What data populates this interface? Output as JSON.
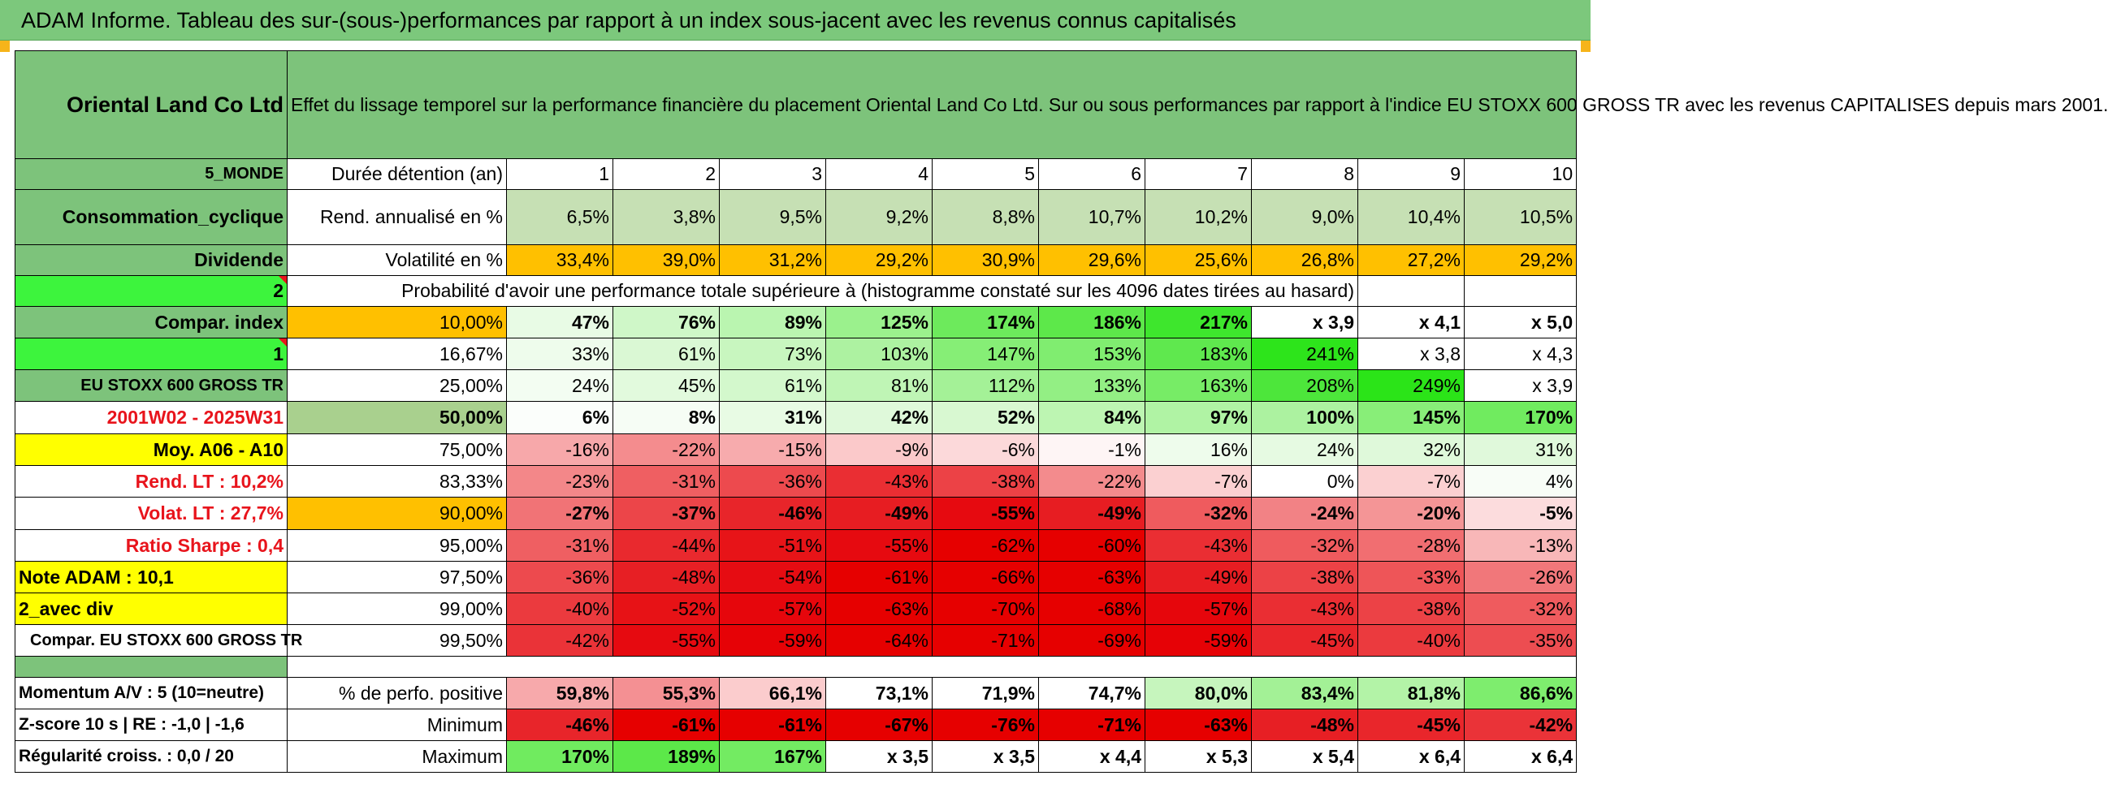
{
  "title": "ADAM Informe. Tableau des sur-(sous-)performances par rapport à un index sous-jacent avec les revenus connus capitalisés",
  "header": {
    "company": "Oriental Land Co Ltd",
    "description": "Effet du lissage temporel sur la performance financière du placement Oriental Land Co Ltd. Sur ou sous performances par rapport à l'indice EU STOXX 600 GROSS TR avec les revenus CAPITALISES depuis mars 2001."
  },
  "labels": {
    "zone": "5_MONDE",
    "sector": "Consommation_cyclique",
    "dividend": "Dividende",
    "code2": "2",
    "compar_index": "Compar. index",
    "code1": "1",
    "index_name": "EU STOXX 600 GROSS TR",
    "period": "2001W02 - 2025W31",
    "moy": "Moy. A06 - A10",
    "rend_lt": "Rend. LT :    10,2%",
    "volat_lt": "Volat. LT :    27,7%",
    "sharpe": "Ratio Sharpe :     0,4",
    "note": "Note ADAM : 10,1",
    "avec_div": "2_avec div",
    "compar_full": "Compar. EU STOXX 600 GROSS TR",
    "momentum": "Momentum A/V : 5 (10=neutre)",
    "zscore": "Z-score 10 s | RE : -1,0 | -1,6",
    "regularite": "Régularité croiss. : 0,0 / 20"
  },
  "duration": {
    "label": "Durée détention (an)",
    "years": [
      "1",
      "2",
      "3",
      "4",
      "5",
      "6",
      "7",
      "8",
      "9",
      "10"
    ]
  },
  "rend": {
    "label": "Rend. annualisé en %",
    "values": [
      "6,5%",
      "3,8%",
      "9,5%",
      "9,2%",
      "8,8%",
      "10,7%",
      "10,2%",
      "9,0%",
      "10,4%",
      "10,5%"
    ]
  },
  "volat": {
    "label": "Volatilité en %",
    "values": [
      "33,4%",
      "39,0%",
      "31,2%",
      "29,2%",
      "30,9%",
      "29,6%",
      "25,6%",
      "26,8%",
      "27,2%",
      "29,2%"
    ]
  },
  "probability_text": "Probabilité d'avoir une performance totale supérieure à (histogramme constaté sur les 4096 dates tirées au hasard)",
  "quantiles": [
    {
      "pct": "10,00%",
      "values": [
        "47%",
        "76%",
        "89%",
        "125%",
        "174%",
        "186%",
        "217%",
        "x 3,9",
        "x 4,1",
        "x 5,0"
      ],
      "colors": [
        "#e8fbe5",
        "#cff7c8",
        "#baf5b0",
        "#9bf18d",
        "#6dea5c",
        "#5de84a",
        "#3ee62d",
        "#ffffff",
        "#ffffff",
        "#ffffff"
      ]
    },
    {
      "pct": "16,67%",
      "values": [
        "33%",
        "61%",
        "73%",
        "103%",
        "147%",
        "153%",
        "183%",
        "241%",
        "x 3,8",
        "x 4,3"
      ],
      "colors": [
        "#eefcec",
        "#daf8d4",
        "#c8f6bf",
        "#adf2a1",
        "#86ee76",
        "#80ed70",
        "#5fe84e",
        "#2de41b",
        "#ffffff",
        "#ffffff"
      ]
    },
    {
      "pct": "25,00%",
      "values": [
        "24%",
        "45%",
        "61%",
        "81%",
        "112%",
        "133%",
        "163%",
        "208%",
        "249%",
        "x 3,9"
      ],
      "colors": [
        "#f3fdf2",
        "#e2fadd",
        "#d3f8cc",
        "#bff5b5",
        "#a4f197",
        "#93ef84",
        "#77ec66",
        "#4de63b",
        "#2be418",
        "#ffffff"
      ]
    },
    {
      "pct": "50,00%",
      "values": [
        "6%",
        "8%",
        "31%",
        "42%",
        "52%",
        "84%",
        "97%",
        "100%",
        "145%",
        "170%"
      ],
      "colors": [
        "#fbfefb",
        "#f6fdf5",
        "#e8fbe4",
        "#dff9da",
        "#d8f8d1",
        "#bdf5b2",
        "#b0f3a4",
        "#acf2a0",
        "#88ee78",
        "#70eb5f"
      ]
    },
    {
      "pct": "75,00%",
      "values": [
        "-16%",
        "-22%",
        "-15%",
        "-9%",
        "-6%",
        "-1%",
        "16%",
        "24%",
        "32%",
        "31%"
      ],
      "colors": [
        "#f7a8aa",
        "#f48c8e",
        "#f7abad",
        "#fbc9ca",
        "#fcd9da",
        "#fef5f5",
        "#eefcec",
        "#e6fae2",
        "#dff9da",
        "#e0f9db"
      ]
    },
    {
      "pct": "83,33%",
      "values": [
        "-23%",
        "-31%",
        "-36%",
        "-43%",
        "-38%",
        "-22%",
        "-7%",
        "0%",
        "-7%",
        "4%"
      ],
      "colors": [
        "#f38789",
        "#ef5f62",
        "#ed4a4e",
        "#ea2e33",
        "#ec4246",
        "#f38b8d",
        "#fbd0d1",
        "#ffffff",
        "#fbd0d1",
        "#f8fdf7"
      ]
    },
    {
      "pct": "90,00%",
      "values": [
        "-27%",
        "-37%",
        "-46%",
        "-49%",
        "-55%",
        "-49%",
        "-32%",
        "-24%",
        "-20%",
        "-5%"
      ],
      "colors": [
        "#f17376",
        "#ec4549",
        "#e8252a",
        "#e71d22",
        "#e60a10",
        "#e71d22",
        "#ef5b5e",
        "#f28285",
        "#f49596",
        "#fcdcdd"
      ]
    },
    {
      "pct": "95,00%",
      "values": [
        "-31%",
        "-44%",
        "-51%",
        "-55%",
        "-62%",
        "-60%",
        "-43%",
        "-32%",
        "-28%",
        "-13%"
      ],
      "colors": [
        "#ef5f62",
        "#e9292e",
        "#e71418",
        "#e60a10",
        "#e60000",
        "#e60000",
        "#ea2e33",
        "#ef5b5e",
        "#f16e71",
        "#f8b7b8"
      ]
    },
    {
      "pct": "97,50%",
      "values": [
        "-36%",
        "-48%",
        "-54%",
        "-61%",
        "-66%",
        "-63%",
        "-49%",
        "-38%",
        "-33%",
        "-26%"
      ],
      "colors": [
        "#ed4a4e",
        "#e71f24",
        "#e60c12",
        "#e60000",
        "#e60000",
        "#e60000",
        "#e71d22",
        "#ec4246",
        "#ee5558",
        "#f1777a"
      ]
    },
    {
      "pct": "99,00%",
      "values": [
        "-40%",
        "-52%",
        "-57%",
        "-63%",
        "-70%",
        "-68%",
        "-57%",
        "-43%",
        "-38%",
        "-32%"
      ],
      "colors": [
        "#eb3a3e",
        "#e71216",
        "#e6060c",
        "#e60000",
        "#e60000",
        "#e60000",
        "#e6060c",
        "#ea2e33",
        "#ec4246",
        "#ef5b5e"
      ]
    },
    {
      "pct": "99,50%",
      "values": [
        "-42%",
        "-55%",
        "-59%",
        "-64%",
        "-71%",
        "-69%",
        "-59%",
        "-45%",
        "-40%",
        "-35%"
      ],
      "colors": [
        "#ea3338",
        "#e60a10",
        "#e60206",
        "#e60000",
        "#e60000",
        "#e60000",
        "#e60206",
        "#e9262b",
        "#eb3a3e",
        "#ed4d51"
      ]
    }
  ],
  "stats": {
    "positive": {
      "label": "% de perfo. positive",
      "values": [
        "59,8%",
        "55,3%",
        "66,1%",
        "73,1%",
        "71,9%",
        "74,7%",
        "80,0%",
        "83,4%",
        "81,8%",
        "86,6%"
      ],
      "colors": [
        "#f7a9ab",
        "#f49093",
        "#fbcccd",
        "#ffffff",
        "#ffffff",
        "#ffffff",
        "#c6f5bd",
        "#a3f196",
        "#b3f3a7",
        "#7eed6e"
      ]
    },
    "minimum": {
      "label": "Minimum",
      "values": [
        "-46%",
        "-61%",
        "-61%",
        "-67%",
        "-76%",
        "-71%",
        "-63%",
        "-48%",
        "-45%",
        "-42%"
      ],
      "colors": [
        "#e8252a",
        "#e60000",
        "#e60000",
        "#e60000",
        "#e60000",
        "#e60000",
        "#e60000",
        "#e71f24",
        "#e9262b",
        "#ea3338"
      ]
    },
    "maximum": {
      "label": "Maximum",
      "values": [
        "170%",
        "189%",
        "167%",
        "x 3,5",
        "x 3,5",
        "x 4,4",
        "x 5,3",
        "x 5,4",
        "x 6,4",
        "x 6,4"
      ],
      "colors": [
        "#70eb5f",
        "#5ce849",
        "#73eb62",
        "#ffffff",
        "#ffffff",
        "#ffffff",
        "#ffffff",
        "#ffffff",
        "#ffffff",
        "#ffffff"
      ]
    }
  }
}
